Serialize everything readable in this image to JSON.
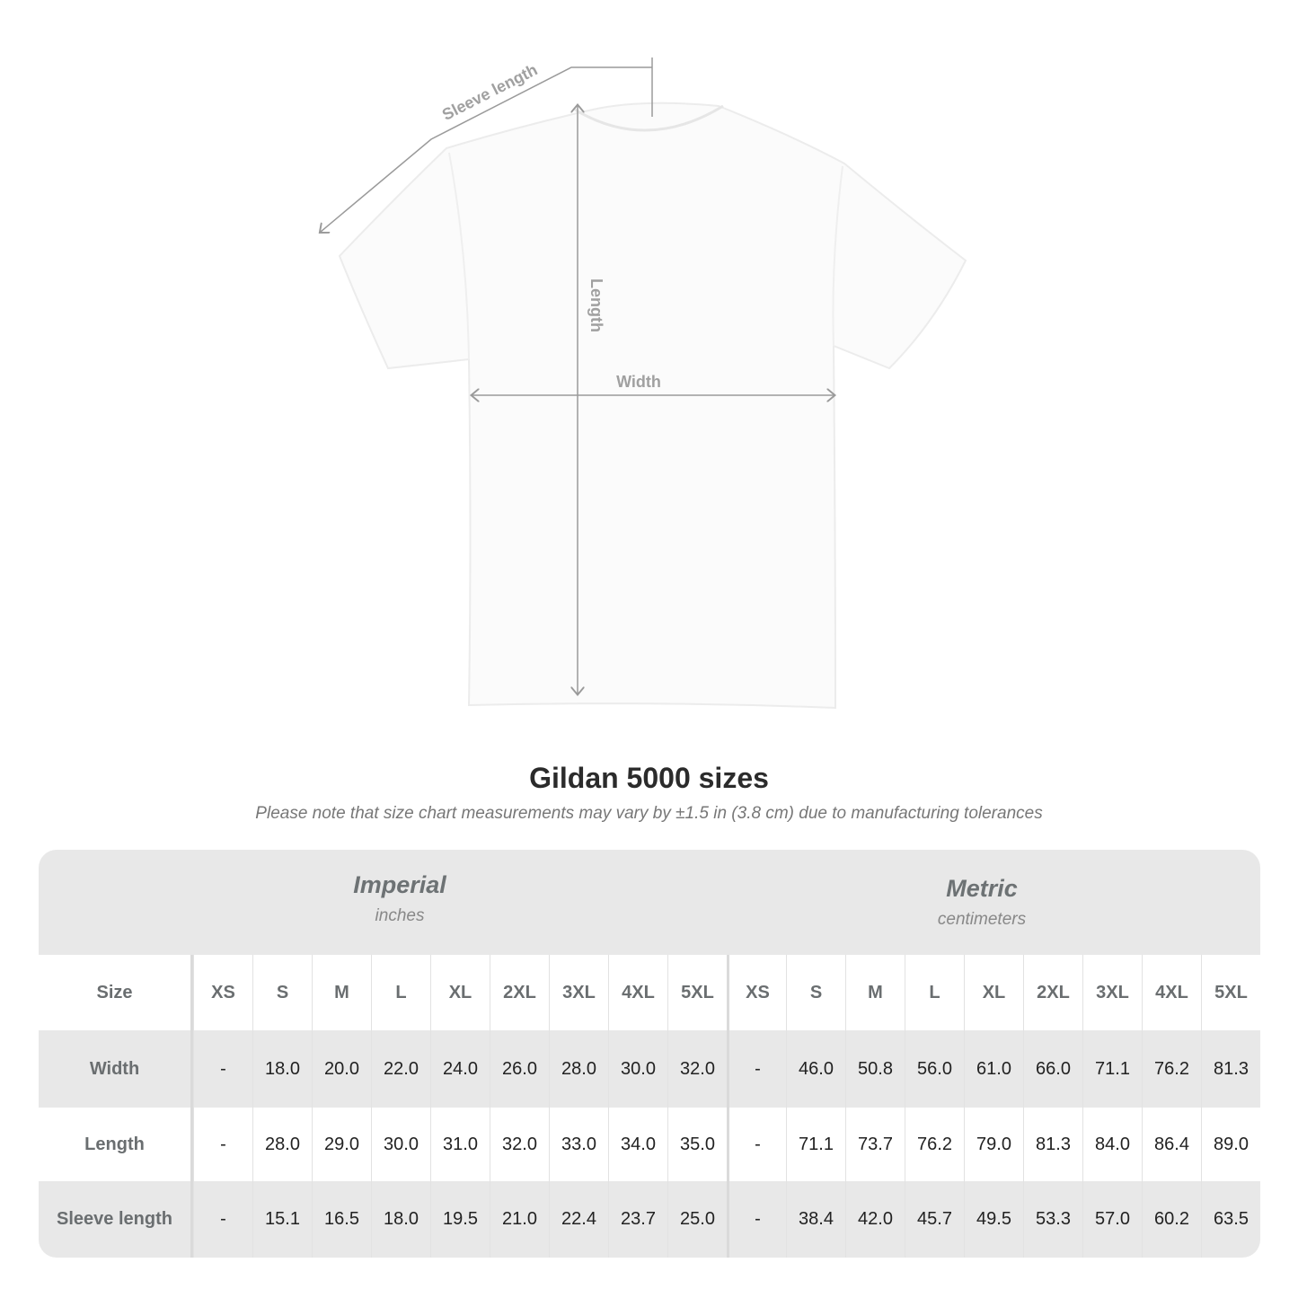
{
  "diagram": {
    "labels": {
      "sleeve": "Sleeve length",
      "length": "Length",
      "width": "Width"
    }
  },
  "title": "Gildan 5000 sizes",
  "subtitle": "Please note that size chart measurements may vary by ±1.5 in (3.8 cm) due to manufacturing tolerances",
  "table": {
    "imperial": {
      "system": "Imperial",
      "unit": "inches"
    },
    "metric": {
      "system": "Metric",
      "unit": "centimeters"
    },
    "header_label": "Size",
    "sizes": [
      "XS",
      "S",
      "M",
      "L",
      "XL",
      "2XL",
      "3XL",
      "4XL",
      "5XL"
    ],
    "rows": [
      {
        "label": "Width",
        "imperial": [
          "-",
          "18.0",
          "20.0",
          "22.0",
          "24.0",
          "26.0",
          "28.0",
          "30.0",
          "32.0"
        ],
        "metric": [
          "-",
          "46.0",
          "50.8",
          "56.0",
          "61.0",
          "66.0",
          "71.1",
          "76.2",
          "81.3"
        ]
      },
      {
        "label": "Length",
        "imperial": [
          "-",
          "28.0",
          "29.0",
          "30.0",
          "31.0",
          "32.0",
          "33.0",
          "34.0",
          "35.0"
        ],
        "metric": [
          "-",
          "71.1",
          "73.7",
          "76.2",
          "79.0",
          "81.3",
          "84.0",
          "86.4",
          "89.0"
        ]
      },
      {
        "label": "Sleeve length",
        "imperial": [
          "-",
          "15.1",
          "16.5",
          "18.0",
          "19.5",
          "21.0",
          "22.4",
          "23.7",
          "25.0"
        ],
        "metric": [
          "-",
          "38.4",
          "42.0",
          "45.7",
          "49.5",
          "53.3",
          "57.0",
          "60.2",
          "63.5"
        ]
      }
    ]
  },
  "colors": {
    "header_band": "#e8e8e8",
    "label_text": "#6a6e70",
    "measure_line": "#9a9a9a"
  }
}
